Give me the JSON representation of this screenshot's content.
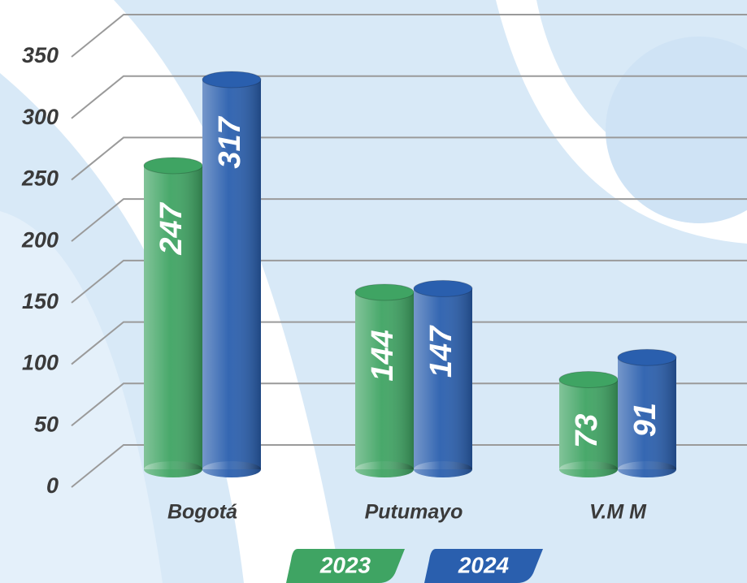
{
  "chart_data": {
    "type": "bar",
    "categories": [
      "Bogotá",
      "Putumayo",
      "V.M M"
    ],
    "series": [
      {
        "name": "2023",
        "color": "#3fa463",
        "values": [
          247,
          144,
          73
        ]
      },
      {
        "name": "2024",
        "color": "#2a5fae",
        "values": [
          317,
          147,
          91
        ]
      }
    ],
    "ylim": [
      0,
      350
    ],
    "yticks": [
      0,
      50,
      100,
      150,
      200,
      250,
      300,
      350
    ],
    "grid": true,
    "legend": "bottom"
  }
}
